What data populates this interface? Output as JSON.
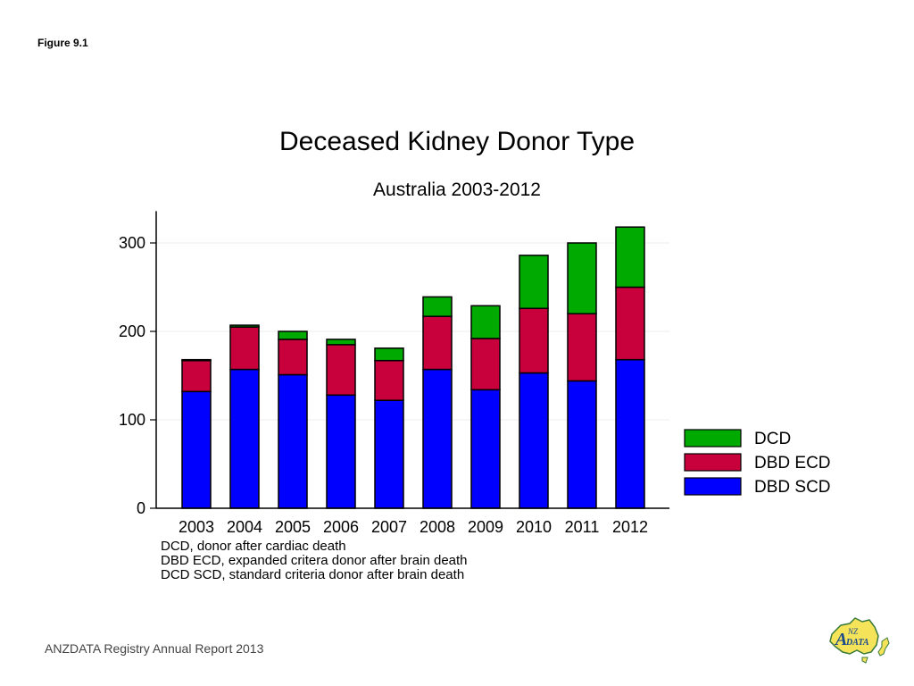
{
  "figure_label": "Figure 9.1",
  "footer": "ANZDATA Registry Annual Report 2013",
  "logo": {
    "name": "anzdata-logo",
    "text_a": "A",
    "text_nz": "NZ",
    "text_data": "DATA"
  },
  "colors": {
    "dcd": "#00aa00",
    "dbd_ecd": "#c8003c",
    "dbd_scd": "#0000ff"
  },
  "chart_data": {
    "type": "bar",
    "stacked": true,
    "title": "Deceased Kidney Donor Type",
    "subtitle": "Australia 2003-2012",
    "xlabel": "",
    "ylabel": "",
    "categories": [
      "2003",
      "2004",
      "2005",
      "2006",
      "2007",
      "2008",
      "2009",
      "2010",
      "2011",
      "2012"
    ],
    "ylim": [
      0,
      336
    ],
    "yticks": [
      0,
      100,
      200,
      300
    ],
    "grid": true,
    "legend_position": "right",
    "series": [
      {
        "name": "DBD SCD",
        "color": "#0000ff",
        "values": [
          132,
          157,
          151,
          128,
          122,
          157,
          134,
          153,
          144,
          168
        ]
      },
      {
        "name": "DBD ECD",
        "color": "#c8003c",
        "values": [
          35,
          48,
          40,
          57,
          45,
          60,
          58,
          73,
          76,
          82
        ]
      },
      {
        "name": "DCD",
        "color": "#00aa00",
        "values": [
          1,
          2,
          9,
          6,
          14,
          22,
          37,
          60,
          80,
          68
        ]
      }
    ],
    "legend_order": [
      "DCD",
      "DBD ECD",
      "DBD SCD"
    ],
    "notes": [
      "DCD, donor after cardiac death",
      "DBD ECD, expanded critera donor after brain death",
      "DCD SCD, standard criteria donor after brain death"
    ]
  }
}
